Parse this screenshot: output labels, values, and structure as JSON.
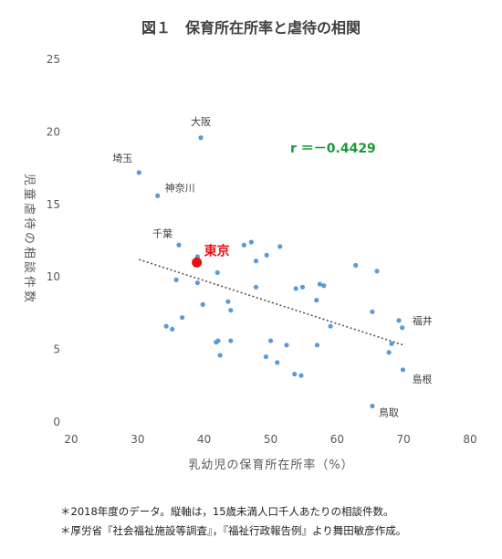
{
  "chart_data": {
    "type": "scatter",
    "title": "図１　保育所在所率と虐待の相関",
    "xlabel": "乳幼児の保育所在所率（%）",
    "ylabel": "児童虐待の相談件数",
    "xlim": [
      20,
      80
    ],
    "ylim": [
      0,
      25
    ],
    "xticks": [
      20,
      30,
      40,
      50,
      60,
      70,
      80
    ],
    "yticks": [
      0,
      5,
      10,
      15,
      20,
      25
    ],
    "grid": false,
    "correlation_label": "r ＝－0.4429",
    "point_color": "#5b9bd5",
    "highlight_color": "#e81010",
    "label_color": "#1a9a3a",
    "trendline": {
      "style": "dotted",
      "x": [
        30.2,
        70.0
      ],
      "y": [
        11.2,
        5.3
      ]
    },
    "points": [
      {
        "x": 39.5,
        "y": 19.6,
        "label": "大阪"
      },
      {
        "x": 30.2,
        "y": 17.2,
        "label": "埼玉"
      },
      {
        "x": 33.0,
        "y": 15.6,
        "label": "神奈川"
      },
      {
        "x": 36.2,
        "y": 12.2,
        "label": "千葉"
      },
      {
        "x": 39.0,
        "y": 11.4
      },
      {
        "x": 42.0,
        "y": 10.3
      },
      {
        "x": 35.8,
        "y": 9.8
      },
      {
        "x": 39.0,
        "y": 9.6
      },
      {
        "x": 39.8,
        "y": 8.1
      },
      {
        "x": 36.7,
        "y": 7.2
      },
      {
        "x": 34.3,
        "y": 6.6
      },
      {
        "x": 35.2,
        "y": 6.4
      },
      {
        "x": 43.6,
        "y": 8.3
      },
      {
        "x": 44.0,
        "y": 7.7
      },
      {
        "x": 46.0,
        "y": 12.2
      },
      {
        "x": 47.1,
        "y": 12.4
      },
      {
        "x": 47.8,
        "y": 11.1
      },
      {
        "x": 49.4,
        "y": 11.5
      },
      {
        "x": 51.4,
        "y": 12.1
      },
      {
        "x": 47.8,
        "y": 9.3
      },
      {
        "x": 53.8,
        "y": 9.2
      },
      {
        "x": 54.8,
        "y": 9.3
      },
      {
        "x": 57.4,
        "y": 9.5
      },
      {
        "x": 58.0,
        "y": 9.4
      },
      {
        "x": 56.9,
        "y": 8.4
      },
      {
        "x": 59.0,
        "y": 6.6
      },
      {
        "x": 62.8,
        "y": 10.8
      },
      {
        "x": 66.0,
        "y": 10.4
      },
      {
        "x": 65.3,
        "y": 7.6
      },
      {
        "x": 41.8,
        "y": 5.5
      },
      {
        "x": 42.1,
        "y": 5.6
      },
      {
        "x": 44.0,
        "y": 5.6
      },
      {
        "x": 42.4,
        "y": 4.6
      },
      {
        "x": 50.0,
        "y": 5.6
      },
      {
        "x": 52.4,
        "y": 5.3
      },
      {
        "x": 49.3,
        "y": 4.5
      },
      {
        "x": 51.0,
        "y": 4.1
      },
      {
        "x": 57.0,
        "y": 5.3
      },
      {
        "x": 53.6,
        "y": 3.3
      },
      {
        "x": 54.6,
        "y": 3.2
      },
      {
        "x": 69.3,
        "y": 7.0
      },
      {
        "x": 69.8,
        "y": 6.5,
        "label": "福井"
      },
      {
        "x": 68.2,
        "y": 5.4
      },
      {
        "x": 67.8,
        "y": 4.8
      },
      {
        "x": 69.9,
        "y": 3.6,
        "label": "島根"
      },
      {
        "x": 65.3,
        "y": 1.1,
        "label": "鳥取"
      }
    ],
    "highlight": {
      "x": 38.9,
      "y": 11.0,
      "label": "東京"
    }
  },
  "footnotes": [
    "＊2018年度のデータ。縦軸は，15歳未満人口千人あたりの相談件数。",
    "＊厚労省『社会福祉施設等調査』，『福祉行政報告例』より舞田敏彦作成。"
  ]
}
